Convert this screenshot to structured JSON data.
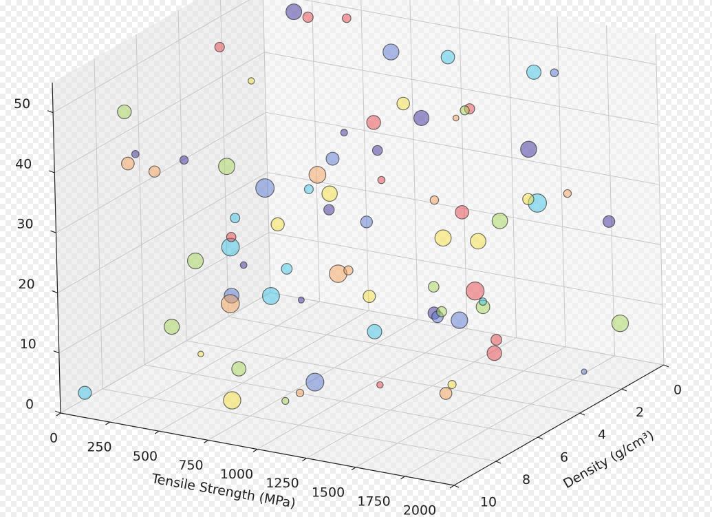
{
  "chart_data": {
    "type": "scatter3d",
    "xlabel": "Tensile Strength (MPa)",
    "ylabel": "Density (g/cm³)",
    "xlim": [
      0,
      2000
    ],
    "ylim": [
      10,
      0
    ],
    "zlim": [
      0,
      55
    ],
    "xticks": [
      0,
      250,
      500,
      750,
      1000,
      1250,
      1500,
      1750,
      2000
    ],
    "yticks": [
      0,
      2,
      4,
      6,
      8,
      10
    ],
    "zticks": [
      0,
      10,
      20,
      30,
      40,
      50
    ],
    "grid": true,
    "x": [
      120,
      340,
      560,
      780,
      1000,
      1220,
      1440,
      1660,
      1880,
      250,
      470,
      690,
      910,
      1130,
      1350,
      1570,
      1790,
      60,
      280,
      500,
      720,
      940,
      1160,
      1380,
      1600,
      1820,
      180,
      400,
      620,
      840,
      1060,
      1280,
      1500,
      1720,
      1940,
      90,
      310,
      530,
      750,
      970,
      1190,
      1410,
      1630,
      1850,
      210,
      430,
      650,
      870,
      1090,
      1310,
      1530,
      1750,
      1970,
      150,
      370,
      590,
      810,
      1030,
      1250,
      1470,
      1690,
      1910,
      40,
      260,
      480,
      700,
      920,
      1140,
      1360,
      1580,
      1800,
      130,
      350,
      570,
      790,
      1010,
      1230,
      1450,
      1670,
      1890
    ],
    "y": [
      3.2,
      7.8,
      1.5,
      9.1,
      4.6,
      2.3,
      8.4,
      5.7,
      0.9,
      6.2,
      3.9,
      0.4,
      7.1,
      9.6,
      2.8,
      5.1,
      8.8,
      1.2,
      4.4,
      9.9,
      6.6,
      3.3,
      0.7,
      7.5,
      4.9,
      2.1,
      8.2,
      5.5,
      1.8,
      9.3,
      6.9,
      3.6,
      0.2,
      7.7,
      5.2,
      2.6,
      9.5,
      6.1,
      4.0,
      1.1,
      8.6,
      3.0,
      5.9,
      9.0,
      0.5,
      7.3,
      2.9,
      4.8,
      8.1,
      1.6,
      6.4,
      3.8,
      9.7,
      0.8,
      5.3,
      7.0,
      2.4,
      8.9,
      4.2,
      1.3,
      6.7,
      3.5,
      9.2,
      0.3,
      7.9,
      5.0,
      2.0,
      8.5,
      4.7,
      1.9,
      6.0,
      3.1,
      9.4,
      0.6,
      7.4,
      5.6,
      2.7,
      8.3,
      4.5,
      1.4
    ],
    "z": [
      48,
      12,
      33,
      5,
      27,
      41,
      19,
      52,
      8,
      36,
      22,
      45,
      3,
      30,
      14,
      50,
      25,
      38,
      10,
      43,
      17,
      31,
      6,
      47,
      28,
      2,
      39,
      21,
      53,
      11,
      34,
      24,
      46,
      9,
      37,
      15,
      51,
      20,
      29,
      4,
      44,
      13,
      35,
      26,
      49,
      7,
      32,
      18,
      40,
      1,
      23,
      42,
      16,
      54,
      11,
      30,
      38,
      6,
      45,
      27,
      19,
      35,
      2,
      48,
      24,
      13,
      41,
      9,
      33,
      50,
      15,
      28,
      44,
      4,
      37,
      21,
      52,
      10,
      31,
      26
    ],
    "sizes": [
      80,
      200,
      40,
      260,
      120,
      30,
      180,
      90,
      240,
      60,
      150,
      220,
      50,
      100,
      280,
      70,
      130,
      35,
      190,
      110,
      250,
      45,
      160,
      85,
      210,
      25,
      140,
      270,
      65,
      175,
      95,
      230,
      55,
      125,
      290,
      75,
      165,
      38,
      205,
      115,
      245,
      48,
      155,
      88,
      215,
      28,
      145,
      265,
      68,
      185,
      98,
      225,
      58,
      128,
      285,
      78,
      168,
      42,
      198,
      108,
      238,
      52,
      148,
      92,
      218,
      32,
      138,
      275,
      62,
      178,
      102,
      232,
      46,
      132,
      295,
      72,
      158,
      36,
      208,
      118
    ],
    "colors": [
      "#e8474b",
      "#a8d85a",
      "#3a2e9a",
      "#f5e142",
      "#5a78d0",
      "#f6a25c",
      "#3fc5e8",
      "#e8474b",
      "#a8d85a",
      "#3a2e9a",
      "#f5e142",
      "#5a78d0",
      "#f6a25c",
      "#3fc5e8",
      "#e8474b",
      "#a8d85a",
      "#3a2e9a",
      "#f5e142",
      "#5a78d0",
      "#f6a25c",
      "#3fc5e8",
      "#e8474b",
      "#a8d85a",
      "#3a2e9a",
      "#f5e142",
      "#5a78d0",
      "#f6a25c",
      "#3fc5e8",
      "#e8474b",
      "#a8d85a",
      "#3a2e9a",
      "#f5e142",
      "#5a78d0",
      "#f6a25c",
      "#3fc5e8",
      "#e8474b",
      "#a8d85a",
      "#3a2e9a",
      "#f5e142",
      "#5a78d0",
      "#f6a25c",
      "#3fc5e8",
      "#e8474b",
      "#a8d85a",
      "#3a2e9a",
      "#f5e142",
      "#5a78d0",
      "#f6a25c",
      "#3fc5e8",
      "#e8474b",
      "#a8d85a",
      "#3a2e9a",
      "#f5e142",
      "#5a78d0",
      "#f6a25c",
      "#3fc5e8",
      "#e8474b",
      "#a8d85a",
      "#3a2e9a",
      "#f5e142",
      "#5a78d0",
      "#f6a25c",
      "#3fc5e8",
      "#e8474b",
      "#a8d85a",
      "#3a2e9a",
      "#f5e142",
      "#5a78d0",
      "#f6a25c",
      "#3fc5e8",
      "#e8474b",
      "#a8d85a",
      "#3a2e9a",
      "#f5e142",
      "#5a78d0",
      "#f6a25c",
      "#3fc5e8",
      "#e8474b",
      "#a8d85a",
      "#3a2e9a"
    ]
  }
}
